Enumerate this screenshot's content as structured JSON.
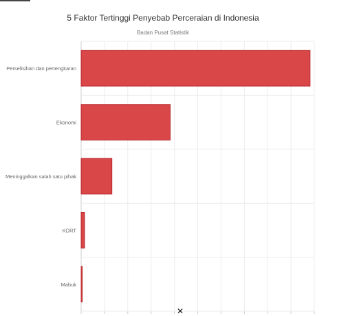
{
  "chart_data": {
    "type": "bar",
    "orientation": "horizontal",
    "title": "5 Faktor Tertinggi Penyebab Perceraian di Indonesia",
    "subtitle": "Badan Pusat Statistik",
    "categories": [
      "Perselisihan dan pertengkaran",
      "Ekonomi",
      "Meninggalkan salah satu pihak",
      "KDRT",
      "Mabuk"
    ],
    "values": [
      108000,
      42000,
      14500,
      1600,
      500
    ],
    "xlim": [
      0,
      110000
    ],
    "grid": true,
    "legend": "none",
    "bar_color": "#d94749",
    "bar_border": "#b8272b"
  },
  "cursor_glyph": "✕"
}
